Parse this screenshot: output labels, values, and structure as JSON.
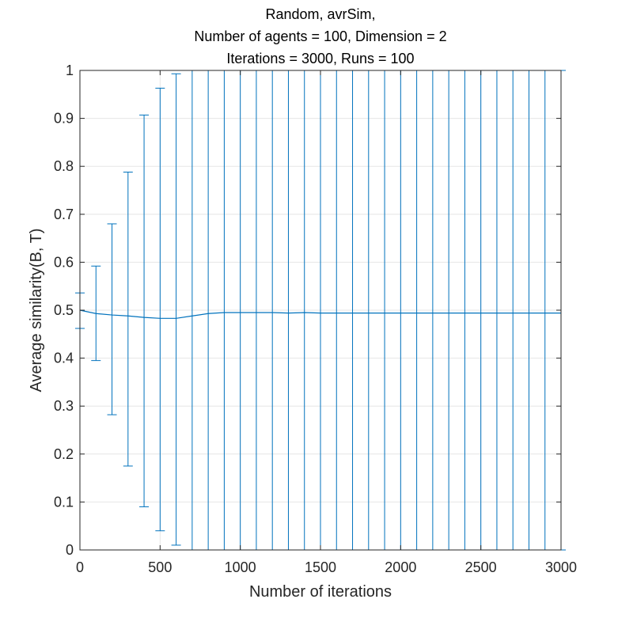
{
  "chart_data": {
    "type": "line",
    "title_lines": [
      "Random, avrSim,",
      "Number of agents = 100, Dimension = 2",
      "Iterations = 3000, Runs = 100"
    ],
    "xlabel": "Number of iterations",
    "ylabel": "Average similarity(B, T)",
    "xlim": [
      0,
      3000
    ],
    "ylim": [
      0,
      1
    ],
    "xticks": [
      0,
      500,
      1000,
      1500,
      2000,
      2500,
      3000
    ],
    "xtick_labels": [
      "0",
      "500",
      "1000",
      "1500",
      "2000",
      "2500",
      "3000"
    ],
    "yticks": [
      0,
      0.1,
      0.2,
      0.3,
      0.4,
      0.5,
      0.6,
      0.7,
      0.8,
      0.9,
      1
    ],
    "ytick_labels": [
      "0",
      "0.1",
      "0.2",
      "0.3",
      "0.4",
      "0.5",
      "0.6",
      "0.7",
      "0.8",
      "0.9",
      "1"
    ],
    "grid": true,
    "series_color": "#0072BD",
    "x": [
      0,
      100,
      200,
      300,
      400,
      500,
      600,
      700,
      800,
      900,
      1000,
      1100,
      1200,
      1300,
      1400,
      1500,
      1600,
      1700,
      1800,
      1900,
      2000,
      2100,
      2200,
      2300,
      2400,
      2500,
      2600,
      2700,
      2800,
      2900,
      3000
    ],
    "series": [
      {
        "values": [
          0.5,
          0.493,
          0.49,
          0.488,
          0.485,
          0.483,
          0.483,
          0.488,
          0.493,
          0.495,
          0.495,
          0.495,
          0.495,
          0.494,
          0.495,
          0.494,
          0.494,
          0.494,
          0.494,
          0.494,
          0.494,
          0.494,
          0.494,
          0.494,
          0.494,
          0.494,
          0.494,
          0.494,
          0.494,
          0.494,
          0.494
        ],
        "error_lower": [
          0.462,
          0.395,
          0.282,
          0.175,
          0.09,
          0.04,
          0.01,
          0,
          0,
          0,
          0,
          0,
          0,
          0,
          0,
          0,
          0,
          0,
          0,
          0,
          0,
          0,
          0,
          0,
          0,
          0,
          0,
          0,
          0,
          0,
          0
        ],
        "error_upper": [
          0.536,
          0.592,
          0.68,
          0.788,
          0.907,
          0.963,
          0.993,
          1,
          1,
          1,
          1,
          1,
          1,
          1,
          1,
          1,
          1,
          1,
          1,
          1,
          1,
          1,
          1,
          1,
          1,
          1,
          1,
          1,
          1,
          1,
          1
        ]
      }
    ]
  }
}
